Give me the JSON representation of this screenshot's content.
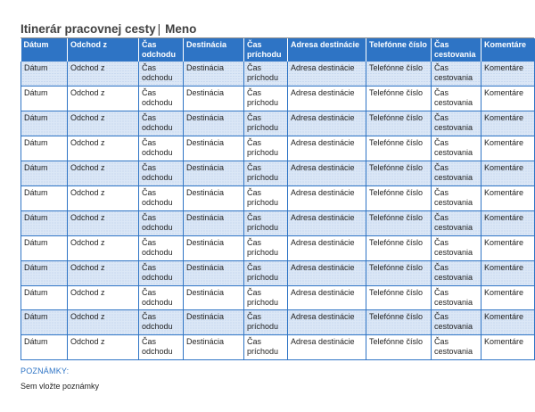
{
  "header": {
    "title": "Itinerár pracovnej cesty",
    "separator": "|",
    "name": "Meno"
  },
  "table": {
    "columns": [
      "Dátum",
      "Odchod z",
      "Čas odchodu",
      "Destinácia",
      "Čas príchodu",
      "Adresa destinácie",
      "Telefónne číslo",
      "Čas cestovania",
      "Komentáre"
    ],
    "rows": [
      [
        "Dátum",
        "Odchod z",
        "Čas odchodu",
        "Destinácia",
        "Čas príchodu",
        "Adresa destinácie",
        "Telefónne číslo",
        "Čas cestovania",
        "Komentáre"
      ],
      [
        "Dátum",
        "Odchod z",
        "Čas odchodu",
        "Destinácia",
        "Čas príchodu",
        "Adresa destinácie",
        "Telefónne číslo",
        "Čas cestovania",
        "Komentáre"
      ],
      [
        "Dátum",
        "Odchod z",
        "Čas odchodu",
        "Destinácia",
        "Čas príchodu",
        "Adresa destinácie",
        "Telefónne číslo",
        "Čas cestovania",
        "Komentáre"
      ],
      [
        "Dátum",
        "Odchod z",
        "Čas odchodu",
        "Destinácia",
        "Čas príchodu",
        "Adresa destinácie",
        "Telefónne číslo",
        "Čas cestovania",
        "Komentáre"
      ],
      [
        "Dátum",
        "Odchod z",
        "Čas odchodu",
        "Destinácia",
        "Čas príchodu",
        "Adresa destinácie",
        "Telefónne číslo",
        "Čas cestovania",
        "Komentáre"
      ],
      [
        "Dátum",
        "Odchod z",
        "Čas odchodu",
        "Destinácia",
        "Čas príchodu",
        "Adresa destinácie",
        "Telefónne číslo",
        "Čas cestovania",
        "Komentáre"
      ],
      [
        "Dátum",
        "Odchod z",
        "Čas odchodu",
        "Destinácia",
        "Čas príchodu",
        "Adresa destinácie",
        "Telefónne číslo",
        "Čas cestovania",
        "Komentáre"
      ],
      [
        "Dátum",
        "Odchod z",
        "Čas odchodu",
        "Destinácia",
        "Čas príchodu",
        "Adresa destinácie",
        "Telefónne číslo",
        "Čas cestovania",
        "Komentáre"
      ],
      [
        "Dátum",
        "Odchod z",
        "Čas odchodu",
        "Destinácia",
        "Čas príchodu",
        "Adresa destinácie",
        "Telefónne číslo",
        "Čas cestovania",
        "Komentáre"
      ],
      [
        "Dátum",
        "Odchod z",
        "Čas odchodu",
        "Destinácia",
        "Čas príchodu",
        "Adresa destinácie",
        "Telefónne číslo",
        "Čas cestovania",
        "Komentáre"
      ],
      [
        "Dátum",
        "Odchod z",
        "Čas odchodu",
        "Destinácia",
        "Čas príchodu",
        "Adresa destinácie",
        "Telefónne číslo",
        "Čas cestovania",
        "Komentáre"
      ],
      [
        "Dátum",
        "Odchod z",
        "Čas odchodu",
        "Destinácia",
        "Čas príchodu",
        "Adresa destinácie",
        "Telefónne číslo",
        "Čas cestovania",
        "Komentáre"
      ]
    ]
  },
  "notes": {
    "label": "POZNÁMKY:",
    "text": "Sem vložte poznámky"
  },
  "colors": {
    "accent": "#2e74c5",
    "band": "#dbe7f6",
    "title_text": "#404040"
  }
}
